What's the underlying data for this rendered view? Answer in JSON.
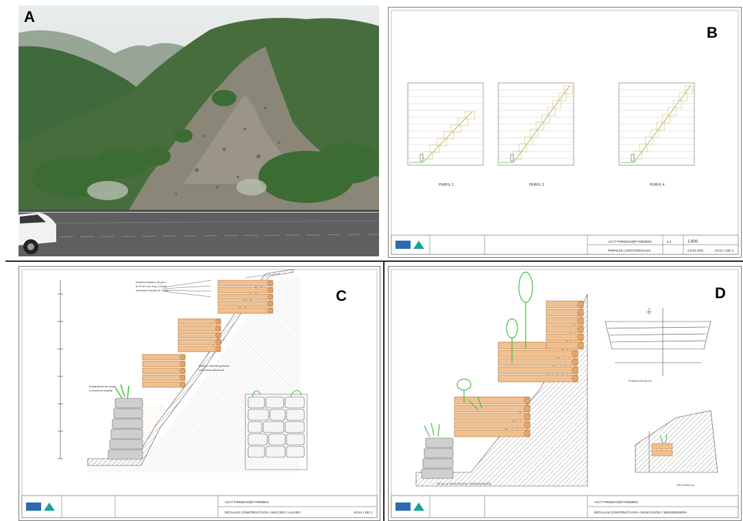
{
  "panels": {
    "a": {
      "label": "A"
    },
    "b": {
      "label": "B",
      "profiles": [
        {
          "name": "PERFIL 2"
        },
        {
          "name": "PERFIL 3"
        },
        {
          "name": "PERFIL 4"
        }
      ],
      "title_block": {
        "project": "ACCT PIRINEOS@PYRÉNÉES",
        "sheet": "5.4",
        "scale": "1:600",
        "drawing": "PERFILES LONGITUDINALES",
        "date": "2.8.02.2021",
        "sheet_count": "HOJA 1 DE 3"
      }
    },
    "c": {
      "label": "C",
      "title_block": {
        "project": "ACCT PIRINEOS@PYRÉNÉES",
        "drawing": "DETALLES CONSTRUCTIVOS • SECCIÓN Y ALZADO",
        "sheet_count": "HOJA 1 DE 3"
      }
    },
    "d": {
      "label": "D",
      "title_block": {
        "project": "ACCT PIRINEOS@PYRÉNÉES",
        "drawing": "DETALLES CONSTRUCTIVOS • VEGETACIÓN Y BIOINGENIERÍA"
      }
    }
  },
  "colors": {
    "timber": "#f0c090",
    "timber_edge": "#b06a2a",
    "plant_green": "#3fbf3f",
    "profile_line": "#f4c890",
    "logo_blue": "#2b6cb0",
    "logo_teal": "#1aa39a"
  }
}
